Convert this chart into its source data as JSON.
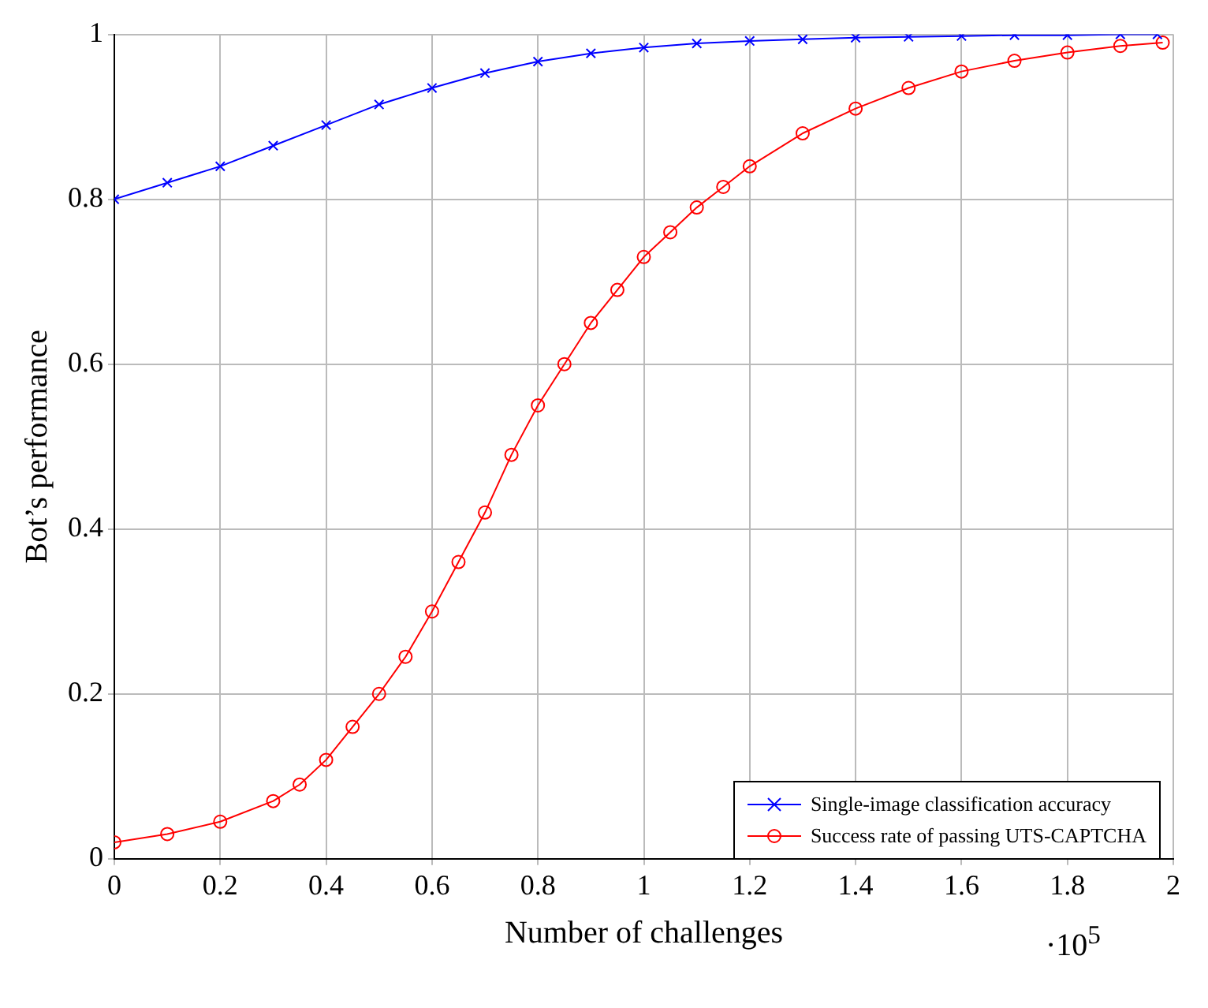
{
  "chart_data": {
    "type": "line",
    "xlabel": "Number of challenges",
    "ylabel": "Bot’s performance",
    "annotations": [
      "·10$^{5}$"
    ],
    "xlim": [
      0,
      2
    ],
    "xticks": [
      0,
      0.2,
      0.4,
      0.6,
      0.8,
      1,
      1.2,
      1.4,
      1.6,
      1.8,
      2
    ],
    "ylim": [
      0,
      1
    ],
    "yticks": [
      0,
      0.2,
      0.4,
      0.6,
      0.8,
      1
    ],
    "grid": true,
    "legend": "bottom right",
    "series": [
      {
        "name": "Single-image classification accuracy",
        "color": "#0000ff",
        "marker": "cross",
        "x": [
          0,
          0.1,
          0.2,
          0.3,
          0.4,
          0.5,
          0.6,
          0.7,
          0.8,
          0.9,
          1,
          1.1,
          1.2,
          1.3,
          1.4,
          1.5,
          1.6,
          1.7,
          1.8,
          1.9,
          1.97
        ],
        "values": [
          0.8,
          0.82,
          0.84,
          0.865,
          0.89,
          0.915,
          0.935,
          0.953,
          0.967,
          0.977,
          0.984,
          0.989,
          0.992,
          0.994,
          0.996,
          0.997,
          0.998,
          0.999,
          0.999,
          1,
          1
        ]
      },
      {
        "name": "Success rate of passing UTS-CAPTCHA",
        "color": "#ff0000",
        "marker": "circle",
        "x": [
          0,
          0.1,
          0.2,
          0.3,
          0.35,
          0.4,
          0.45,
          0.5,
          0.55,
          0.6,
          0.65,
          0.7,
          0.75,
          0.8,
          0.85,
          0.9,
          0.95,
          1,
          1.05,
          1.1,
          1.15,
          1.2,
          1.3,
          1.4,
          1.5,
          1.6,
          1.7,
          1.8,
          1.9,
          1.98
        ],
        "values": [
          0.02,
          0.03,
          0.045,
          0.07,
          0.09,
          0.12,
          0.16,
          0.2,
          0.245,
          0.3,
          0.36,
          0.42,
          0.49,
          0.55,
          0.6,
          0.65,
          0.69,
          0.73,
          0.76,
          0.79,
          0.815,
          0.84,
          0.88,
          0.91,
          0.935,
          0.955,
          0.968,
          0.978,
          0.986,
          0.99
        ]
      }
    ]
  }
}
